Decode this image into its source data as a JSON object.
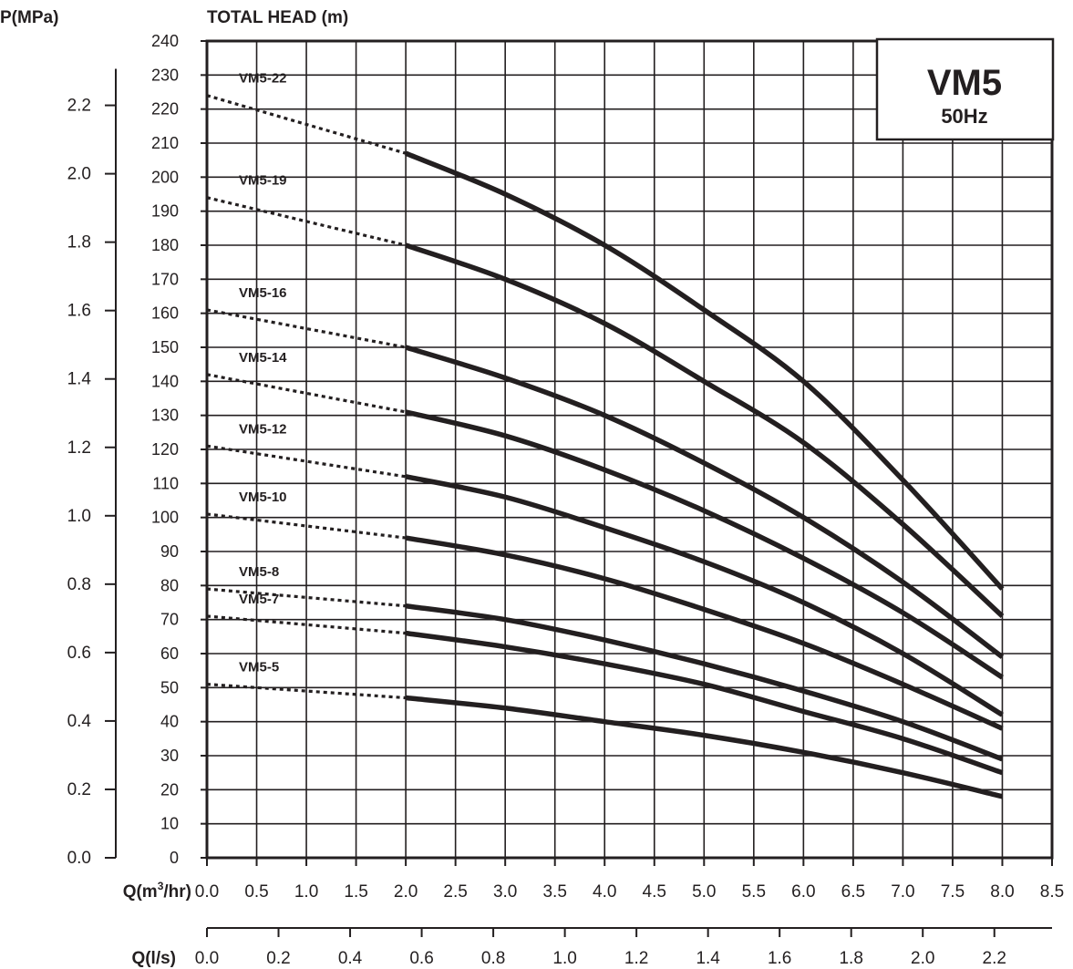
{
  "chart_data": {
    "type": "line",
    "pressure_axis_title": "P(MPa)",
    "head_axis_title": "TOTAL HEAD (m)",
    "x_axis_title_prefix": "Q(m",
    "x_axis_title_sup": "3",
    "x_axis_title_suffix": "/hr)",
    "lps_axis_title": "Q(l/s)",
    "model_box": {
      "model": "VM5",
      "frequency": "50Hz"
    },
    "xlim": [
      0,
      8.5
    ],
    "ylim": [
      0,
      240
    ],
    "x_ticks": [
      "0.0",
      "0.5",
      "1.0",
      "1.5",
      "2.0",
      "2.5",
      "3.0",
      "3.5",
      "4.0",
      "4.5",
      "5.0",
      "5.5",
      "6.0",
      "6.5",
      "7.0",
      "7.5",
      "8.0",
      "8.5"
    ],
    "y_ticks": [
      "0",
      "10",
      "20",
      "30",
      "40",
      "50",
      "60",
      "70",
      "80",
      "90",
      "100",
      "110",
      "120",
      "130",
      "140",
      "150",
      "160",
      "170",
      "180",
      "190",
      "200",
      "210",
      "220",
      "230",
      "240"
    ],
    "pressure_ticks": [
      "0.0",
      "0.2",
      "0.4",
      "0.6",
      "0.8",
      "1.0",
      "1.2",
      "1.4",
      "1.6",
      "1.8",
      "2.0",
      "2.2"
    ],
    "lps_ticks": [
      "0.0",
      "0.2",
      "0.4",
      "0.6",
      "0.8",
      "1.0",
      "1.2",
      "1.4",
      "1.6",
      "1.8",
      "2.0",
      "2.2"
    ],
    "grid": true,
    "series": [
      {
        "name": "VM5-22",
        "dotted": [
          [
            0,
            224
          ],
          [
            2.0,
            207
          ]
        ],
        "solid": [
          [
            2.0,
            207
          ],
          [
            3.0,
            195
          ],
          [
            4.0,
            180
          ],
          [
            5.0,
            161
          ],
          [
            6.0,
            140
          ],
          [
            7.0,
            111
          ],
          [
            8.0,
            79
          ]
        ]
      },
      {
        "name": "VM5-19",
        "dotted": [
          [
            0,
            194
          ],
          [
            2.0,
            180
          ]
        ],
        "solid": [
          [
            2.0,
            180
          ],
          [
            3.0,
            170
          ],
          [
            4.0,
            157
          ],
          [
            5.0,
            140
          ],
          [
            6.0,
            122
          ],
          [
            7.0,
            98
          ],
          [
            8.0,
            71
          ]
        ]
      },
      {
        "name": "VM5-16",
        "dotted": [
          [
            0,
            161
          ],
          [
            2.0,
            150
          ]
        ],
        "solid": [
          [
            2.0,
            150
          ],
          [
            3.0,
            141
          ],
          [
            4.0,
            130
          ],
          [
            5.0,
            116
          ],
          [
            6.0,
            100
          ],
          [
            7.0,
            81
          ],
          [
            8.0,
            59
          ]
        ]
      },
      {
        "name": "VM5-14",
        "dotted": [
          [
            0,
            142
          ],
          [
            2.0,
            131
          ]
        ],
        "solid": [
          [
            2.0,
            131
          ],
          [
            3.0,
            124
          ],
          [
            4.0,
            114
          ],
          [
            5.0,
            102
          ],
          [
            6.0,
            88
          ],
          [
            7.0,
            72
          ],
          [
            8.0,
            53
          ]
        ]
      },
      {
        "name": "VM5-12",
        "dotted": [
          [
            0,
            121
          ],
          [
            2.0,
            112
          ]
        ],
        "solid": [
          [
            2.0,
            112
          ],
          [
            3.0,
            106
          ],
          [
            4.0,
            97
          ],
          [
            5.0,
            87
          ],
          [
            6.0,
            75
          ],
          [
            7.0,
            60
          ],
          [
            8.0,
            42
          ]
        ]
      },
      {
        "name": "VM5-10",
        "dotted": [
          [
            0,
            101
          ],
          [
            2.0,
            94
          ]
        ],
        "solid": [
          [
            2.0,
            94
          ],
          [
            3.0,
            89
          ],
          [
            4.0,
            82
          ],
          [
            5.0,
            73
          ],
          [
            6.0,
            63
          ],
          [
            7.0,
            51
          ],
          [
            8.0,
            38
          ]
        ]
      },
      {
        "name": "VM5-8",
        "dotted": [
          [
            0,
            79
          ],
          [
            2.0,
            74
          ]
        ],
        "solid": [
          [
            2.0,
            74
          ],
          [
            3.0,
            70
          ],
          [
            4.0,
            64
          ],
          [
            5.0,
            57
          ],
          [
            6.0,
            49
          ],
          [
            7.0,
            40
          ],
          [
            8.0,
            29
          ]
        ]
      },
      {
        "name": "VM5-7",
        "dotted": [
          [
            0,
            71
          ],
          [
            2.0,
            66
          ]
        ],
        "solid": [
          [
            2.0,
            66
          ],
          [
            3.0,
            62
          ],
          [
            4.0,
            57
          ],
          [
            5.0,
            51
          ],
          [
            6.0,
            43
          ],
          [
            7.0,
            35
          ],
          [
            8.0,
            25
          ]
        ]
      },
      {
        "name": "VM5-5",
        "dotted": [
          [
            0,
            51
          ],
          [
            2.0,
            47
          ]
        ],
        "solid": [
          [
            2.0,
            47
          ],
          [
            3.0,
            44
          ],
          [
            4.0,
            40
          ],
          [
            5.0,
            36
          ],
          [
            6.0,
            31
          ],
          [
            7.0,
            25
          ],
          [
            8.0,
            18
          ]
        ]
      }
    ]
  }
}
